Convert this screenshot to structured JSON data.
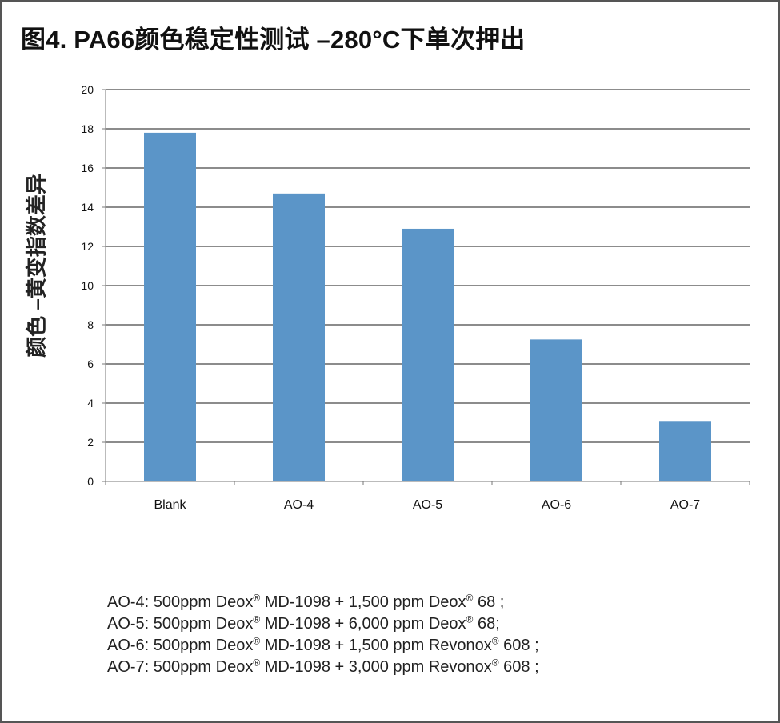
{
  "title": "图4. PA66颜色稳定性测试 –280°C下单次押出",
  "chart_data": {
    "type": "bar",
    "categories": [
      "Blank",
      "AO-4",
      "AO-5",
      "AO-6",
      "AO-7"
    ],
    "values": [
      17.8,
      14.7,
      12.9,
      7.25,
      3.05
    ],
    "ylabel": "颜色 –黄变指数差异",
    "ylim": [
      0,
      20
    ],
    "yticks": [
      0,
      2,
      4,
      6,
      8,
      10,
      12,
      14,
      16,
      18,
      20
    ],
    "grid": true,
    "bar_color": "#5b95c8"
  },
  "notes": [
    {
      "prefix": "AO-4: 500ppm Deox",
      "mid": " MD-1098 + 1,500 ppm Deox",
      "suffix": " 68 ;"
    },
    {
      "prefix": "AO-5: 500ppm Deox",
      "mid": " MD-1098 + 6,000 ppm Deox",
      "suffix": " 68;"
    },
    {
      "prefix": "AO-6: 500ppm Deox",
      "mid": " MD-1098 + 1,500 ppm Revonox",
      "suffix": " 608 ;"
    },
    {
      "prefix": "AO-7: 500ppm Deox",
      "mid": " MD-1098 + 3,000 ppm Revonox",
      "suffix": " 608 ;"
    }
  ],
  "registered_mark": "®"
}
